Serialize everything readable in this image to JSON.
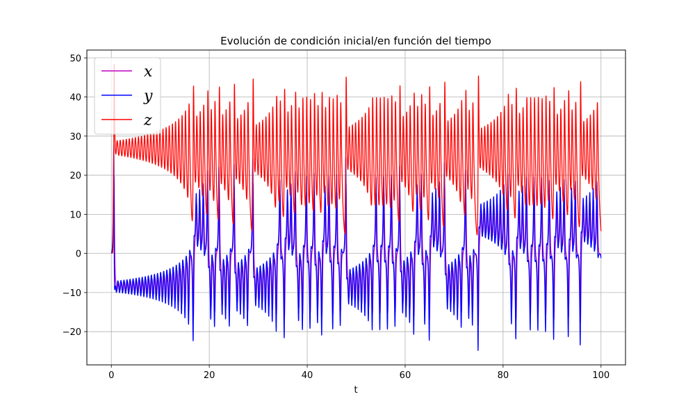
{
  "chart_data": {
    "type": "line",
    "title": "Evolución de condición inicial/en función del tiempo",
    "xlabel": "t",
    "ylabel": "",
    "xlim": [
      -5,
      105
    ],
    "ylim": [
      -28.5,
      52
    ],
    "grid": true,
    "legend_position": "top-left",
    "x_ticks": [
      0,
      20,
      40,
      60,
      80,
      100
    ],
    "y_ticks": [
      -20,
      -10,
      0,
      10,
      20,
      30,
      40,
      50
    ],
    "x_tick_labels": [
      "0",
      "20",
      "40",
      "60",
      "80",
      "100"
    ],
    "y_tick_labels": [
      "−20",
      "−10",
      "0",
      "10",
      "20",
      "30",
      "40",
      "50"
    ],
    "t_range": [
      0,
      100
    ],
    "series": [
      {
        "name": "x",
        "legend_label": "x",
        "color": "#bf00bf"
      },
      {
        "name": "y",
        "legend_label": "y",
        "color": "#0000ff"
      },
      {
        "name": "z",
        "legend_label": "z",
        "color": "#ff0000"
      }
    ],
    "peak_annotations": {
      "z_initial_spike": 48,
      "z_typical_max": 41,
      "z_typical_min": 15,
      "y_typical_max": 16,
      "y_typical_min": -20,
      "y_global_min": -25.5
    }
  }
}
